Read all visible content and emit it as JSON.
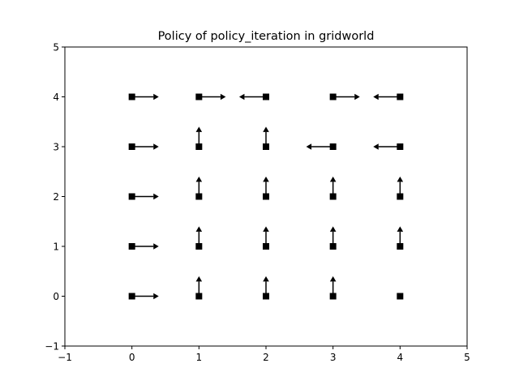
{
  "chart_data": {
    "type": "scatter",
    "title": "Policy of policy_iteration in gridworld",
    "xlabel": "",
    "ylabel": "",
    "xlim": [
      -1,
      5
    ],
    "ylim": [
      -1,
      5
    ],
    "xticks": [
      "−1",
      "0",
      "1",
      "2",
      "3",
      "4",
      "5"
    ],
    "yticks": [
      "−1",
      "0",
      "1",
      "2",
      "3",
      "4",
      "5"
    ],
    "xtick_values": [
      -1,
      0,
      1,
      2,
      3,
      4,
      5
    ],
    "ytick_values": [
      -1,
      0,
      1,
      2,
      3,
      4,
      5
    ],
    "grid": false,
    "marker": "square",
    "arrow_length": 0.4,
    "colors": {
      "marker": "#000000",
      "arrow": "#000000",
      "axes": "#000000",
      "background": "#ffffff"
    },
    "states": [
      {
        "x": 0,
        "y": 4,
        "action": "right"
      },
      {
        "x": 1,
        "y": 4,
        "action": "right"
      },
      {
        "x": 2,
        "y": 4,
        "action": "left"
      },
      {
        "x": 3,
        "y": 4,
        "action": "right"
      },
      {
        "x": 4,
        "y": 4,
        "action": "left"
      },
      {
        "x": 0,
        "y": 3,
        "action": "right"
      },
      {
        "x": 1,
        "y": 3,
        "action": "up"
      },
      {
        "x": 2,
        "y": 3,
        "action": "up"
      },
      {
        "x": 3,
        "y": 3,
        "action": "left"
      },
      {
        "x": 4,
        "y": 3,
        "action": "left"
      },
      {
        "x": 0,
        "y": 2,
        "action": "right"
      },
      {
        "x": 1,
        "y": 2,
        "action": "up"
      },
      {
        "x": 2,
        "y": 2,
        "action": "up"
      },
      {
        "x": 3,
        "y": 2,
        "action": "up"
      },
      {
        "x": 4,
        "y": 2,
        "action": "up"
      },
      {
        "x": 0,
        "y": 1,
        "action": "right"
      },
      {
        "x": 1,
        "y": 1,
        "action": "up"
      },
      {
        "x": 2,
        "y": 1,
        "action": "up"
      },
      {
        "x": 3,
        "y": 1,
        "action": "up"
      },
      {
        "x": 4,
        "y": 1,
        "action": "up"
      },
      {
        "x": 0,
        "y": 0,
        "action": "right"
      },
      {
        "x": 1,
        "y": 0,
        "action": "up"
      },
      {
        "x": 2,
        "y": 0,
        "action": "up"
      },
      {
        "x": 3,
        "y": 0,
        "action": "up"
      },
      {
        "x": 4,
        "y": 0,
        "action": "none"
      }
    ]
  }
}
